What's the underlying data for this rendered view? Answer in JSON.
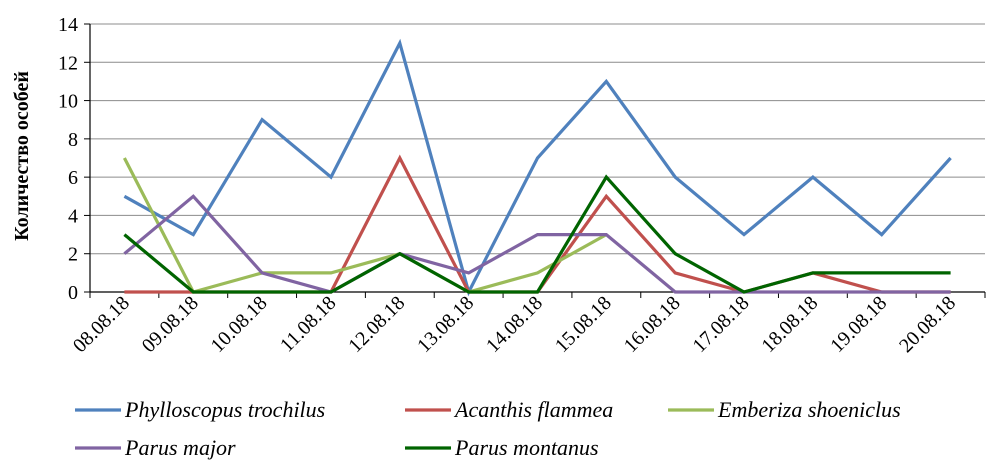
{
  "chart_data": {
    "type": "line",
    "title": "",
    "xlabel": "",
    "ylabel": "Количество особей",
    "ylim": [
      0,
      14
    ],
    "yticks": [
      0,
      2,
      4,
      6,
      8,
      10,
      12,
      14
    ],
    "grid": "horizontal",
    "legend_position": "bottom",
    "categories": [
      "08.08.18",
      "09.08.18",
      "10.08.18",
      "11.08.18",
      "12.08.18",
      "13.08.18",
      "14.08.18",
      "15.08.18",
      "16.08.18",
      "17.08.18",
      "18.08.18",
      "19.08.18",
      "20.08.18"
    ],
    "series": [
      {
        "name": "Phylloscopus trochilus",
        "color": "#4F81BD",
        "values": [
          5,
          3,
          9,
          6,
          13,
          0,
          7,
          11,
          6,
          3,
          6,
          3,
          7
        ]
      },
      {
        "name": "Acanthis flammea",
        "color": "#C0504D",
        "values": [
          0,
          0,
          0,
          0,
          7,
          0,
          0,
          5,
          1,
          0,
          1,
          0,
          0
        ]
      },
      {
        "name": "Emberiza shoeniclus",
        "color": "#9BBB59",
        "values": [
          7,
          0,
          1,
          1,
          2,
          0,
          1,
          3,
          null,
          null,
          null,
          null,
          null
        ]
      },
      {
        "name": "Parus major",
        "color": "#8064A2",
        "values": [
          2,
          5,
          1,
          0,
          2,
          1,
          3,
          3,
          0,
          0,
          0,
          0,
          0
        ]
      },
      {
        "name": "Parus montanus",
        "color": "#006400",
        "values": [
          3,
          0,
          0,
          0,
          2,
          0,
          0,
          6,
          2,
          0,
          1,
          1,
          1
        ]
      }
    ]
  }
}
